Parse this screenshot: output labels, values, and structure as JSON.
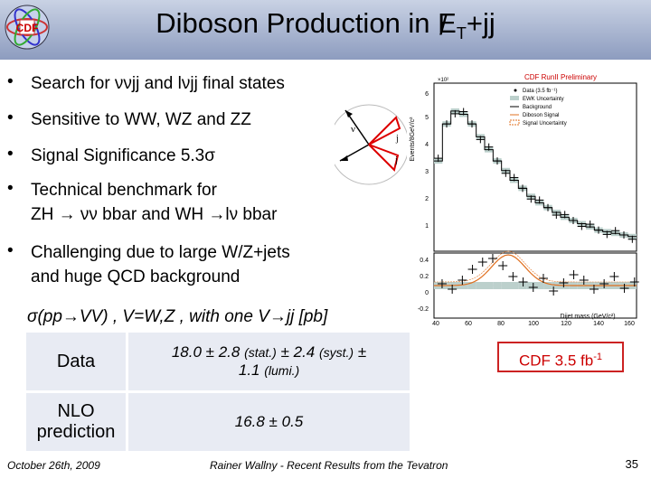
{
  "title": {
    "main": "Diboson Production in ",
    "met_symbol": "E",
    "met_sub": "T",
    "suffix": "+jj"
  },
  "bullets": [
    "Search for ννjj and lνjj final states",
    "Sensitive to WW, WZ and ZZ",
    "Signal Significance 5.3σ",
    "Technical benchmark for",
    "ZH → νν bbar and WH →lν bbar",
    "Challenging due to large W/Z+jets",
    "and huge QCD background"
  ],
  "diagram": {
    "nu_label": "ν",
    "jet_label": "j"
  },
  "plot": {
    "header": "CDF RunII Preliminary",
    "ylabel": "Events/8GeV/c²",
    "xlabel": "Dijet mass (GeV/c²)",
    "exp_label": "×10²",
    "legend": [
      "Data (3.5 fb⁻¹)",
      "EWK Uncertainty",
      "Background",
      "Diboson Signal",
      "Signal Uncertainty"
    ],
    "y_ticks_main": [
      "1",
      "2",
      "3",
      "4",
      "5",
      "6"
    ],
    "y_ticks_ratio": [
      "0.4",
      "0.2",
      "0",
      "-0.2"
    ],
    "x_ticks": [
      "40",
      "60",
      "80",
      "100",
      "120",
      "140",
      "160"
    ]
  },
  "cross_section": {
    "label": "σ(pp→VV) , V=W,Z , with one V→jj [pb]"
  },
  "table": {
    "data_label": "Data",
    "data_value_main": "18.0 ± 2.8 ",
    "data_value_stat": "(stat.)",
    "data_value_mid": " ± 2.4 ",
    "data_value_syst": "(syst.)",
    "data_value_pm": " ±",
    "data_value_lumi_main": "1.1 ",
    "data_value_lumi": "(lumi.)",
    "nlo_label_1": "NLO",
    "nlo_label_2": "prediction",
    "nlo_value": "16.8 ± 0.5"
  },
  "cdf_box": {
    "text": "CDF 3.5 fb",
    "sup": "-1"
  },
  "footer": {
    "date": "October 26th, 2009",
    "author": "Rainer Wallny - Recent Results from the Tevatron",
    "page": "35"
  },
  "colors": {
    "accent_red": "#cc0000",
    "title_bar_top": "#c9d2e4",
    "title_bar_bottom": "#8d9cbf",
    "table_cell": "#e8ebf3"
  }
}
